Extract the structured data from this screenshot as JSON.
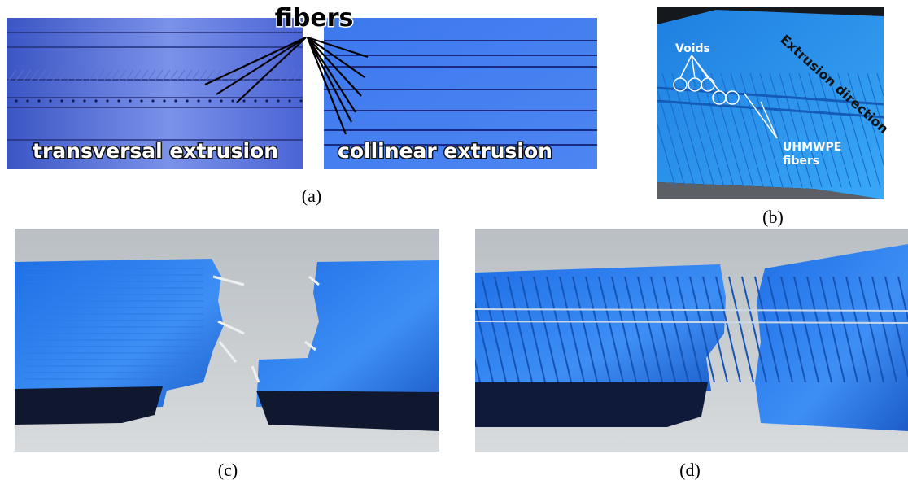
{
  "panel_a": {
    "label": "(a)",
    "pointer": "fibers",
    "left_caption": "transversal extrusion",
    "right_caption": "collinear extrusion"
  },
  "panel_b": {
    "label": "(b)",
    "voids": "Voids",
    "direction": "Extrusion direction",
    "fiber_note": [
      "UHMWPE",
      "fibers"
    ]
  },
  "panel_c": {
    "label": "(c)"
  },
  "panel_d": {
    "label": "(d)"
  }
}
